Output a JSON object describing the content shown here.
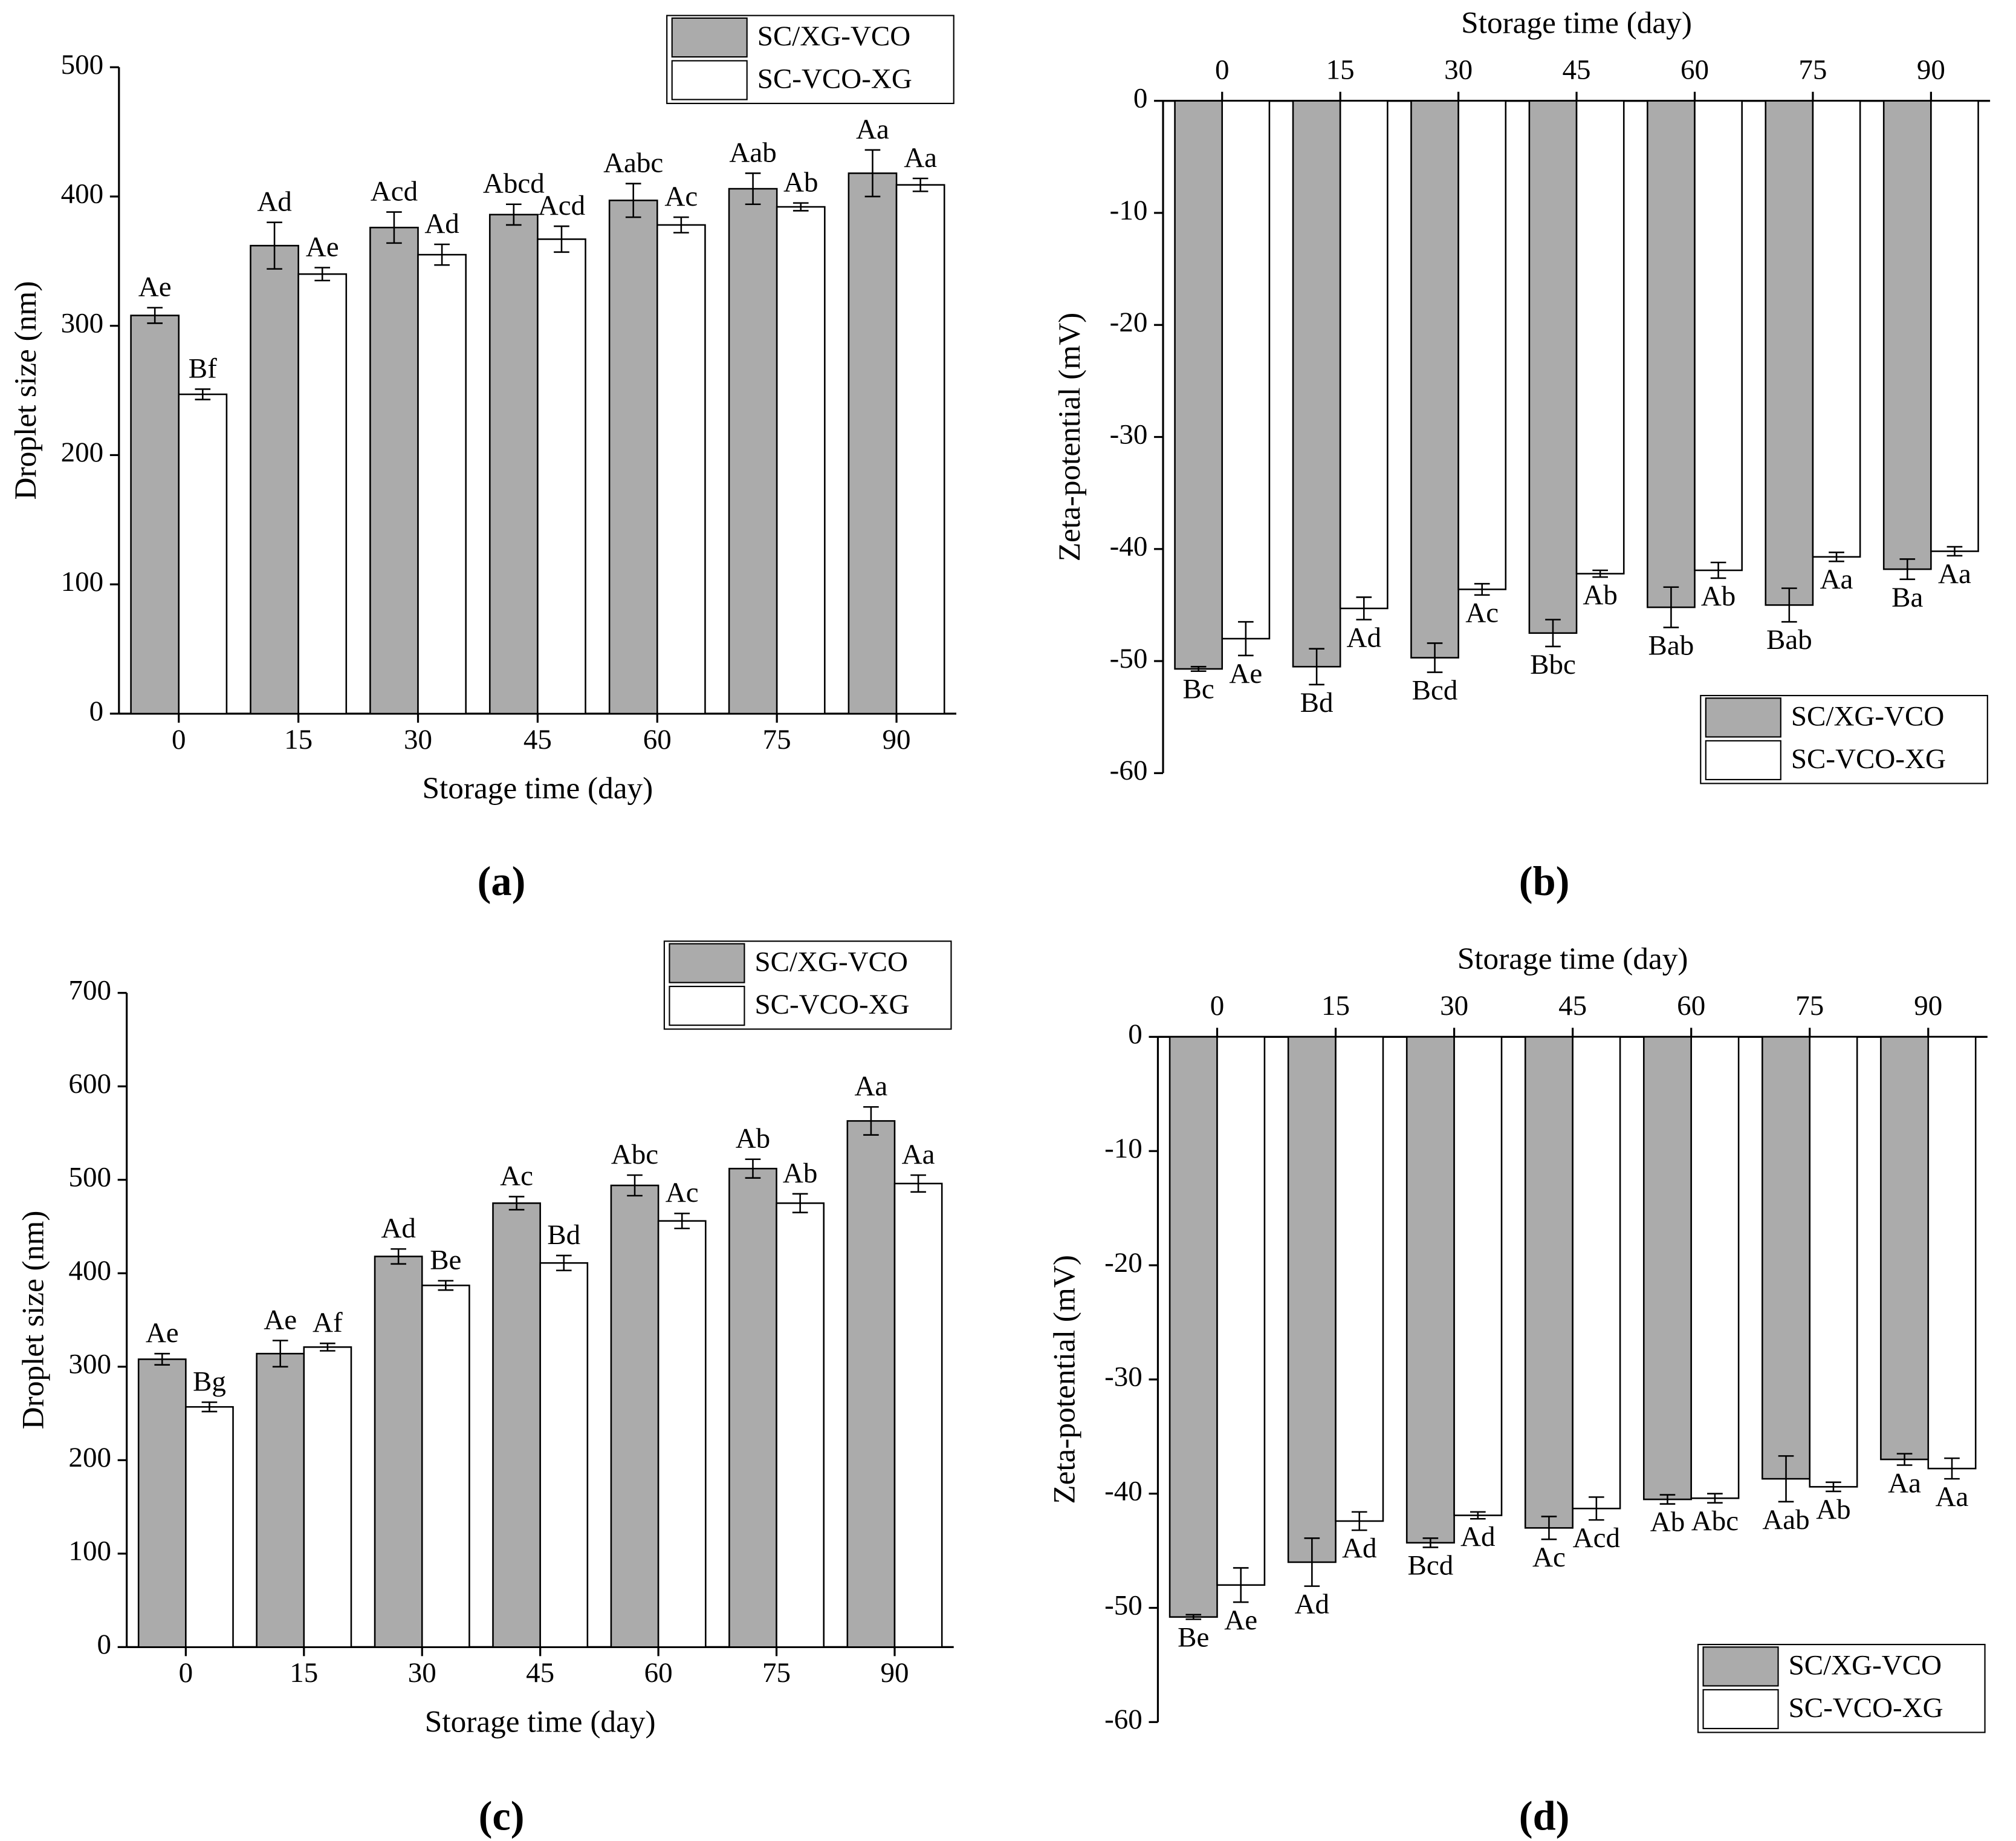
{
  "chart_data": [
    {
      "type": "bar",
      "panel_label": "(a)",
      "x_label": "Storage time (day)",
      "y_label": "Droplet size (nm)",
      "x_axis_position": "bottom",
      "legend_position": "upper right",
      "categories": [
        "0",
        "15",
        "30",
        "45",
        "60",
        "75",
        "90"
      ],
      "ylim": [
        0,
        500
      ],
      "yticks": [
        0,
        100,
        200,
        300,
        400,
        500
      ],
      "grid": false,
      "series": [
        {
          "name": "SC/XG-VCO",
          "color": "#ababab",
          "values": [
            308,
            362,
            376,
            386,
            397,
            406,
            418
          ],
          "errors": [
            6,
            18,
            12,
            8,
            13,
            12,
            18
          ],
          "letters": [
            "Ae",
            "Ad",
            "Acd",
            "Abcd",
            "Aabc",
            "Aab",
            "Aa"
          ]
        },
        {
          "name": "SC-VCO-XG",
          "color": "#ffffff",
          "values": [
            247,
            340,
            355,
            367,
            378,
            392,
            409
          ],
          "errors": [
            4,
            5,
            8,
            10,
            6,
            3,
            5
          ],
          "letters": [
            "Bf",
            "Ae",
            "Ad",
            "Acd",
            "Ac",
            "Ab",
            "Aa"
          ]
        }
      ]
    },
    {
      "type": "bar",
      "panel_label": "(b)",
      "x_label": "Storage time (day)",
      "y_label": "Zeta-potential (mV)",
      "x_axis_position": "top",
      "legend_position": "lower right",
      "categories": [
        "0",
        "15",
        "30",
        "45",
        "60",
        "75",
        "90"
      ],
      "ylim": [
        -60,
        0
      ],
      "yticks": [
        -60,
        -50,
        -40,
        -30,
        -20,
        -10,
        0
      ],
      "grid": false,
      "series": [
        {
          "name": "SC/XG-VCO",
          "color": "#ababab",
          "values": [
            -50.7,
            -50.5,
            -49.7,
            -47.5,
            -45.2,
            -45,
            -41.8
          ],
          "errors": [
            0.2,
            1.6,
            1.3,
            1.2,
            1.8,
            1.5,
            0.9
          ],
          "letters": [
            "Bc",
            "Bd",
            "Bcd",
            "Bbc",
            "Bab",
            "Bab",
            "Ba"
          ]
        },
        {
          "name": "SC-VCO-XG",
          "color": "#ffffff",
          "values": [
            -48,
            -45.3,
            -43.6,
            -42.2,
            -41.9,
            -40.7,
            -40.2
          ],
          "errors": [
            1.5,
            1,
            0.5,
            0.3,
            0.7,
            0.4,
            0.4
          ],
          "letters": [
            "Ae",
            "Ad",
            "Ac",
            "Ab",
            "Ab",
            "Aa",
            "Aa"
          ]
        }
      ]
    },
    {
      "type": "bar",
      "panel_label": "(c)",
      "x_label": "Storage time (day)",
      "y_label": "Droplet size (nm)",
      "x_axis_position": "bottom",
      "legend_position": "upper right",
      "categories": [
        "0",
        "15",
        "30",
        "45",
        "60",
        "75",
        "90"
      ],
      "ylim": [
        0,
        700
      ],
      "yticks": [
        0,
        100,
        200,
        300,
        400,
        500,
        600,
        700
      ],
      "grid": false,
      "series": [
        {
          "name": "SC/XG-VCO",
          "color": "#ababab",
          "values": [
            308,
            314,
            418,
            475,
            494,
            512,
            563
          ],
          "errors": [
            6,
            14,
            8,
            7,
            11,
            10,
            15
          ],
          "letters": [
            "Ae",
            "Ae",
            "Ad",
            "Ac",
            "Abc",
            "Ab",
            "Aa"
          ]
        },
        {
          "name": "SC-VCO-XG",
          "color": "#ffffff",
          "values": [
            257,
            321,
            387,
            411,
            456,
            475,
            496
          ],
          "errors": [
            5,
            4,
            5,
            8,
            8,
            10,
            9
          ],
          "letters": [
            "Bg",
            "Af",
            "Be",
            "Bd",
            "Ac",
            "Ab",
            "Aa"
          ]
        }
      ]
    },
    {
      "type": "bar",
      "panel_label": "(d)",
      "x_label": "Storage time (day)",
      "y_label": "Zeta-potential (mV)",
      "x_axis_position": "top",
      "legend_position": "lower right",
      "categories": [
        "0",
        "15",
        "30",
        "45",
        "60",
        "75",
        "90"
      ],
      "ylim": [
        -60,
        0
      ],
      "yticks": [
        -60,
        -50,
        -40,
        -30,
        -20,
        -10,
        0
      ],
      "grid": false,
      "series": [
        {
          "name": "SC/XG-VCO",
          "color": "#ababab",
          "values": [
            -50.8,
            -46,
            -44.3,
            -43,
            -40.5,
            -38.7,
            -37
          ],
          "errors": [
            0.2,
            2.1,
            0.4,
            1,
            0.4,
            2,
            0.5
          ],
          "letters": [
            "Be",
            "Ad",
            "Bcd",
            "Ac",
            "Ab",
            "Aab",
            "Aa"
          ]
        },
        {
          "name": "SC-VCO-XG",
          "color": "#ffffff",
          "values": [
            -48,
            -42.4,
            -41.9,
            -41.3,
            -40.4,
            -39.4,
            -37.8
          ],
          "errors": [
            1.5,
            0.8,
            0.3,
            1,
            0.4,
            0.4,
            0.9
          ],
          "letters": [
            "Ae",
            "Ad",
            "Ad",
            "Acd",
            "Abc",
            "Ab",
            "Aa"
          ]
        }
      ]
    }
  ]
}
